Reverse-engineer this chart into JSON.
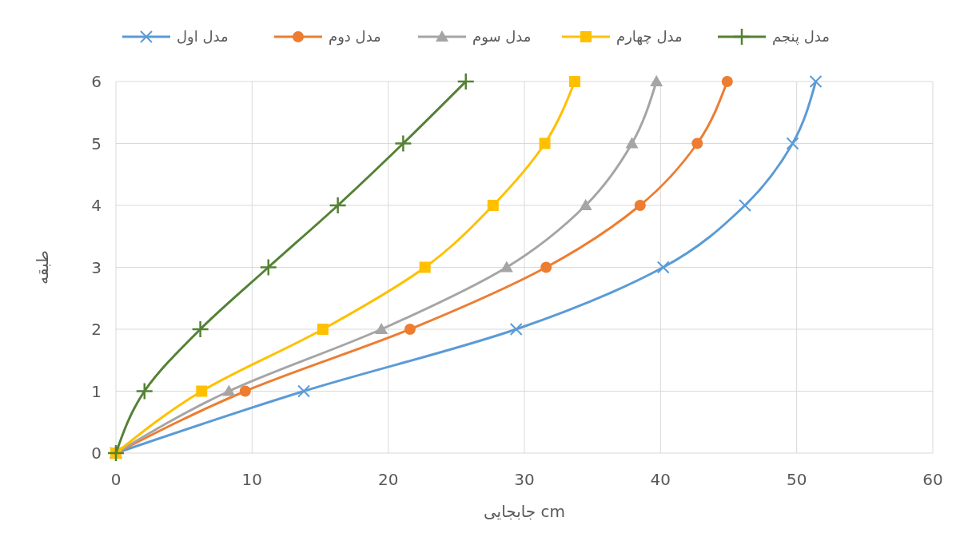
{
  "chart_data": {
    "type": "line",
    "xlabel": "جابجایی cm",
    "ylabel": "طبقه",
    "xlim": [
      0,
      60
    ],
    "xticks": [
      0,
      10,
      20,
      30,
      40,
      50,
      60
    ],
    "ylim": [
      0,
      6
    ],
    "yticks": [
      0,
      1,
      2,
      3,
      4,
      5,
      6
    ],
    "grid": true,
    "legend": "top",
    "series": [
      {
        "name": "مدل اول",
        "color": "#5b9bd5",
        "marker": "cross",
        "x": [
          0,
          13.8,
          29.4,
          40.2,
          46.2,
          49.7,
          51.4
        ],
        "values": [
          0,
          1,
          2,
          3,
          4,
          5,
          6
        ]
      },
      {
        "name": "مدل دوم",
        "color": "#ed7d31",
        "marker": "circle",
        "x": [
          0,
          9.5,
          21.6,
          31.6,
          38.5,
          42.7,
          44.9
        ],
        "values": [
          0,
          1,
          2,
          3,
          4,
          5,
          6
        ]
      },
      {
        "name": "مدل سوم",
        "color": "#a5a5a5",
        "marker": "triangle",
        "x": [
          0,
          8.3,
          19.5,
          28.7,
          34.5,
          37.9,
          39.7
        ],
        "values": [
          0,
          1,
          2,
          3,
          4,
          5,
          6
        ]
      },
      {
        "name": "مدل چهارم",
        "color": "#ffc000",
        "marker": "square",
        "x": [
          0,
          6.3,
          15.2,
          22.7,
          27.7,
          31.5,
          33.7
        ],
        "values": [
          0,
          1,
          2,
          3,
          4,
          5,
          6
        ]
      },
      {
        "name": "مدل پنجم",
        "color": "#548235",
        "marker": "plus",
        "x": [
          0,
          2.1,
          6.2,
          11.2,
          16.3,
          21.1,
          25.7
        ],
        "values": [
          0,
          1,
          2,
          3,
          4,
          5,
          6
        ]
      }
    ]
  }
}
